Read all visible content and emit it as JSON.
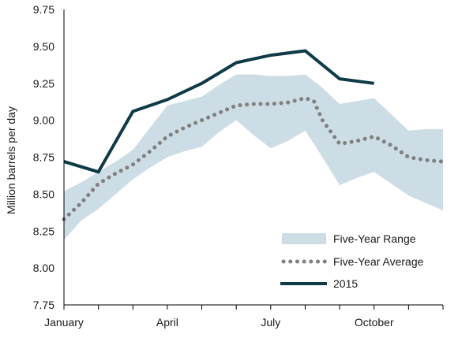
{
  "chart_data": {
    "type": "line",
    "ylabel": "Million barrels per day",
    "xlabel": "",
    "ylim": [
      7.75,
      9.75
    ],
    "y_ticks": [
      "7.75",
      "8.00",
      "8.25",
      "8.50",
      "8.75",
      "9.00",
      "9.25",
      "9.50",
      "9.75"
    ],
    "x_tick_labels": [
      {
        "label": "January",
        "month": 0
      },
      {
        "label": "April",
        "month": 3
      },
      {
        "label": "July",
        "month": 6
      },
      {
        "label": "October",
        "month": 9
      }
    ],
    "x_range": [
      0,
      11
    ],
    "grid": false,
    "legend_position": "bottom-right",
    "colors": {
      "range": "#cddde6",
      "average": "#808080",
      "year": "#0f3a47"
    },
    "series": [
      {
        "name": "Five-Year Range",
        "kind": "band",
        "x": [
          0,
          0.5,
          1,
          1.5,
          2,
          2.5,
          3,
          3.5,
          4,
          4.5,
          5,
          5.5,
          6,
          6.5,
          7,
          7.5,
          8,
          8.5,
          9,
          9.5,
          10,
          10.5,
          11
        ],
        "upper": [
          8.52,
          8.58,
          8.65,
          8.72,
          8.8,
          8.95,
          9.1,
          9.13,
          9.16,
          9.24,
          9.31,
          9.31,
          9.3,
          9.3,
          9.31,
          9.22,
          9.11,
          9.13,
          9.15,
          9.04,
          8.93,
          8.94,
          8.94
        ],
        "lower": [
          8.19,
          8.32,
          8.4,
          8.5,
          8.6,
          8.68,
          8.75,
          8.79,
          8.82,
          8.92,
          9.0,
          8.9,
          8.81,
          8.86,
          8.93,
          8.75,
          8.56,
          8.61,
          8.65,
          8.57,
          8.49,
          8.44,
          8.39
        ]
      },
      {
        "name": "Five-Year Average",
        "kind": "dotted",
        "x": [
          0,
          0.5,
          1,
          1.5,
          2,
          2.5,
          3,
          3.5,
          4,
          4.5,
          5,
          5.5,
          6,
          6.5,
          7,
          7.25,
          7.5,
          8,
          8.5,
          9,
          9.5,
          10,
          10.5,
          11
        ],
        "values": [
          8.33,
          8.44,
          8.57,
          8.64,
          8.7,
          8.79,
          8.89,
          8.95,
          9.0,
          9.05,
          9.1,
          9.11,
          9.11,
          9.12,
          9.15,
          9.13,
          9.0,
          8.84,
          8.86,
          8.89,
          8.83,
          8.75,
          8.73,
          8.72
        ]
      },
      {
        "name": "2015",
        "kind": "solid",
        "x": [
          0,
          1,
          2,
          3,
          4,
          5,
          6,
          7,
          8,
          9
        ],
        "values": [
          8.72,
          8.65,
          9.06,
          9.14,
          9.25,
          9.39,
          9.44,
          9.47,
          9.28,
          9.25
        ]
      }
    ]
  }
}
